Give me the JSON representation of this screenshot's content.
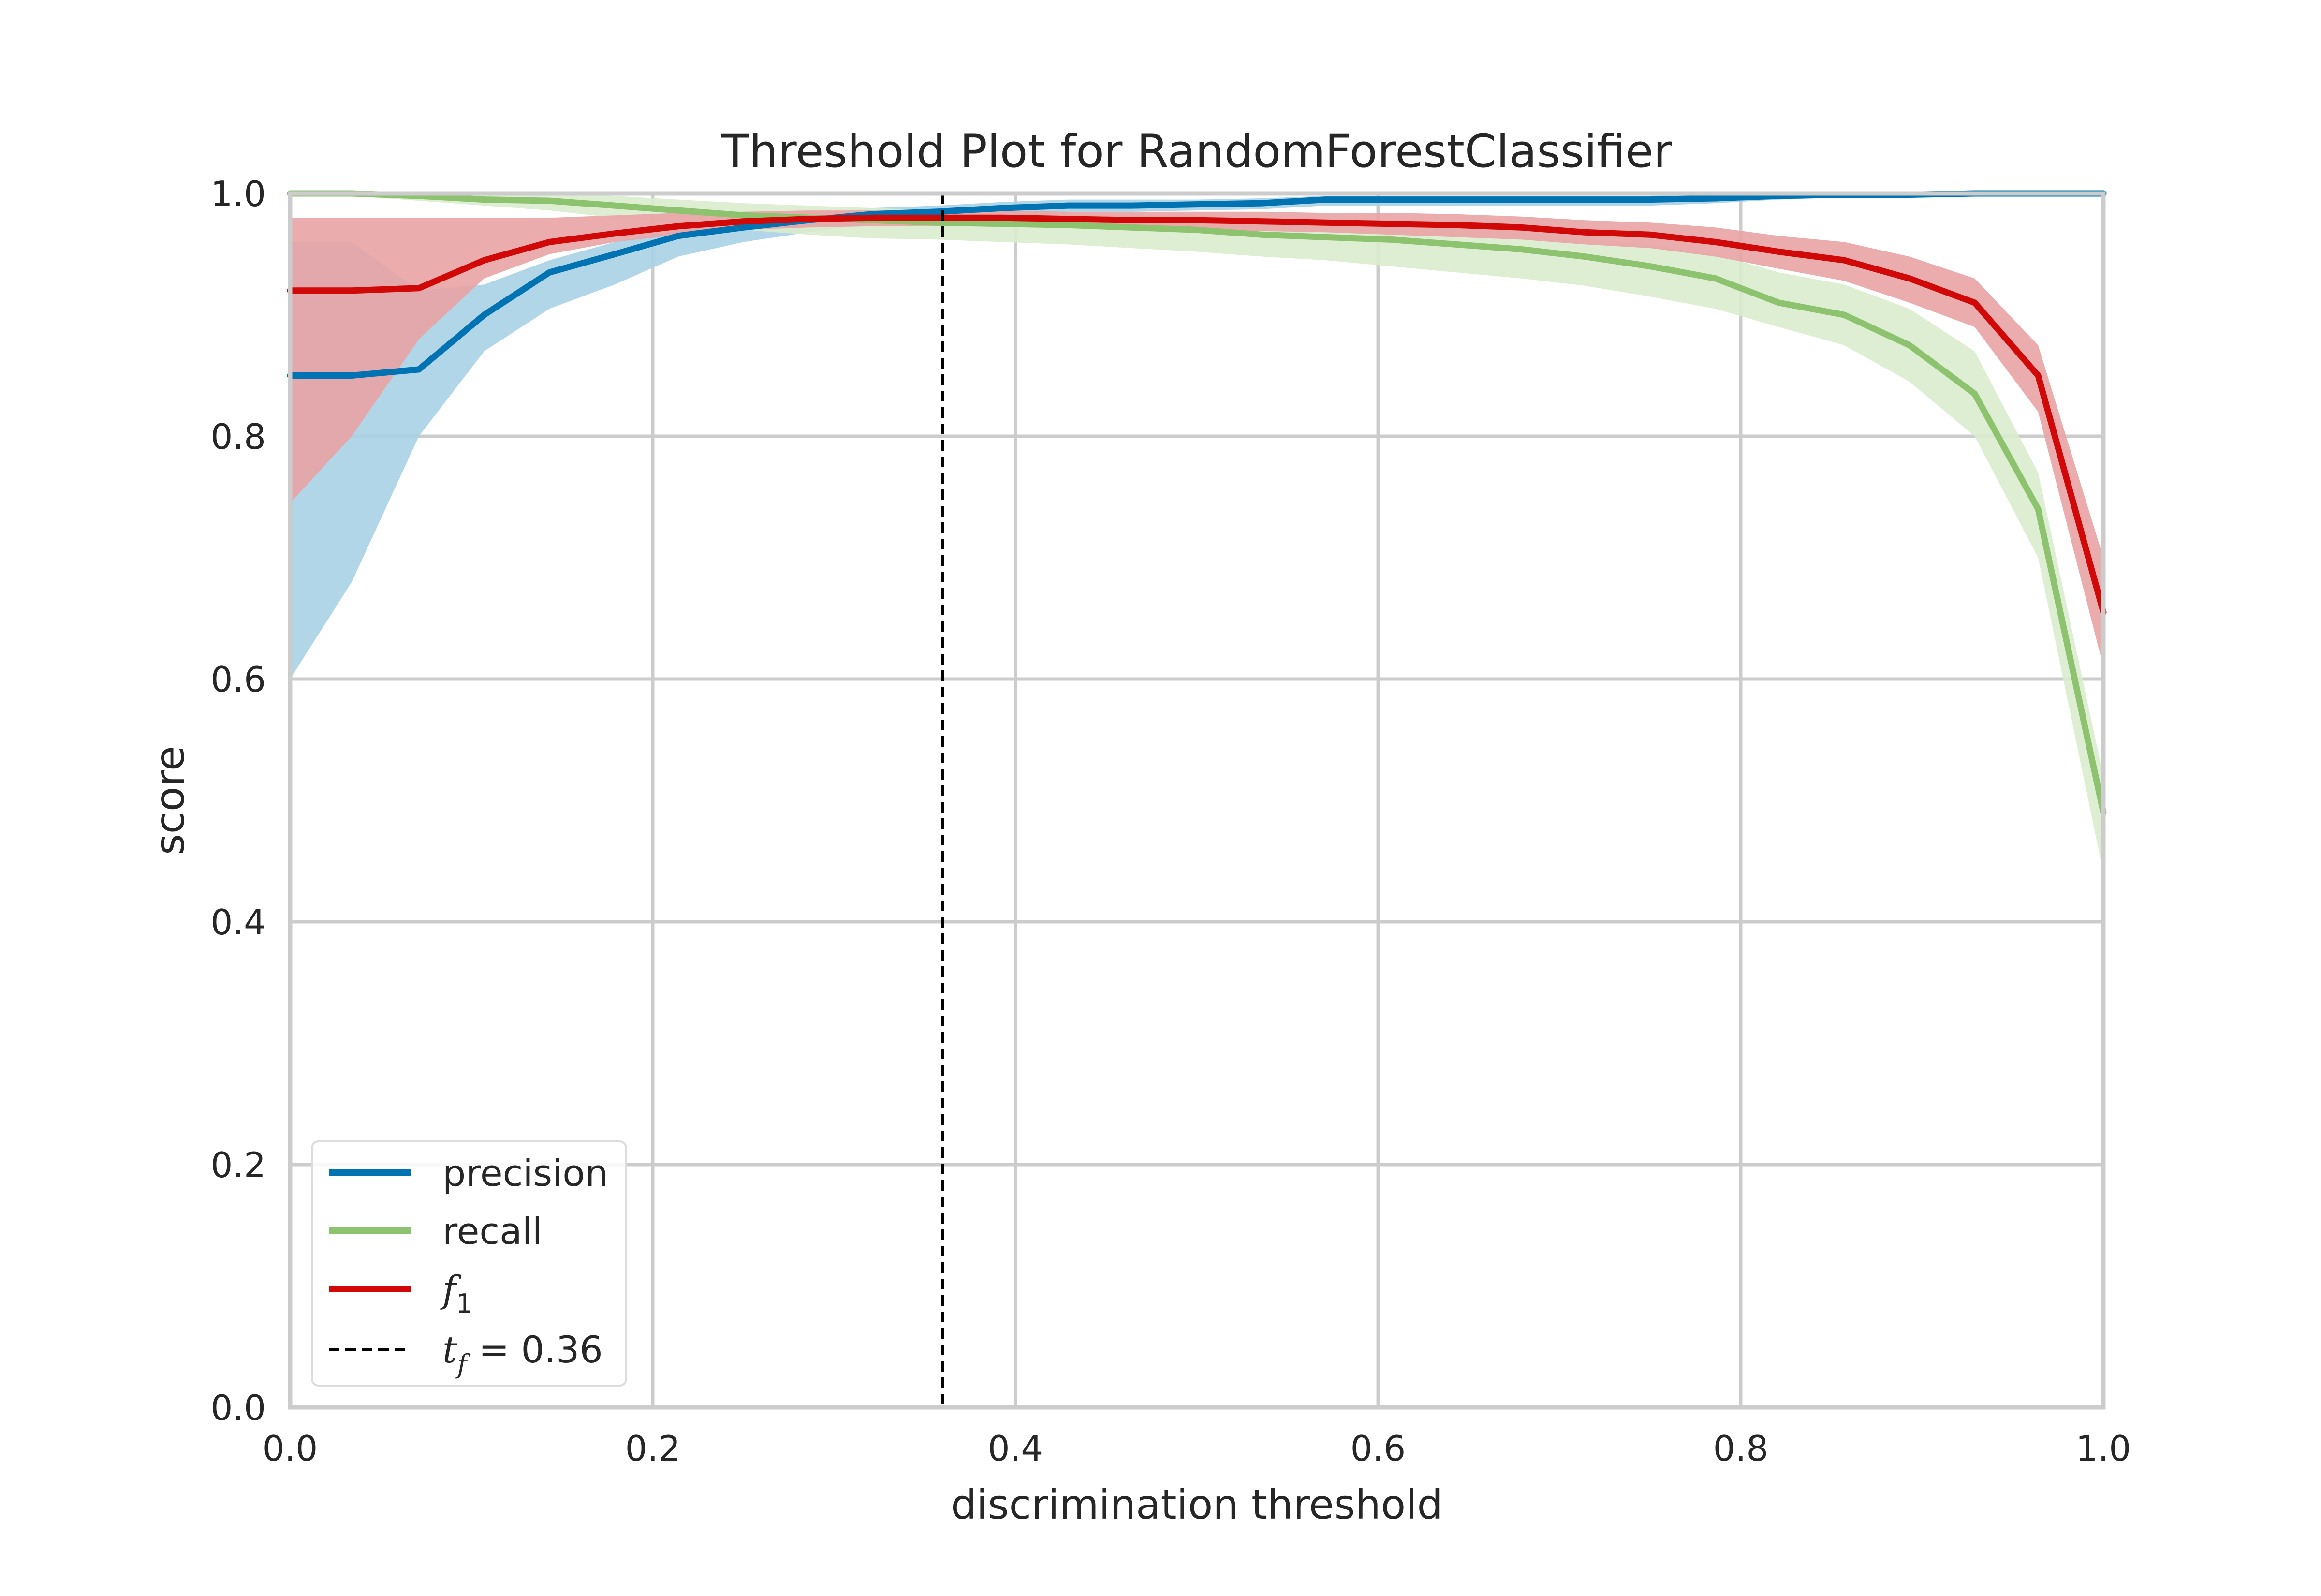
{
  "chart_data": {
    "type": "line",
    "title": "Threshold Plot for RandomForestClassifier",
    "xlabel": "discrimination threshold",
    "ylabel": "score",
    "xlim": [
      0.0,
      1.0
    ],
    "ylim": [
      0.0,
      1.0
    ],
    "grid": true,
    "legend_placement": "bottom-left",
    "xticks": [
      "0.0",
      "0.2",
      "0.4",
      "0.6",
      "0.8",
      "1.0"
    ],
    "yticks": [
      "0.0",
      "0.2",
      "0.4",
      "0.6",
      "0.8",
      "1.0"
    ],
    "x": [
      0.0,
      0.034,
      0.071,
      0.107,
      0.143,
      0.179,
      0.214,
      0.25,
      0.286,
      0.321,
      0.357,
      0.393,
      0.429,
      0.464,
      0.5,
      0.536,
      0.571,
      0.607,
      0.643,
      0.679,
      0.714,
      0.75,
      0.786,
      0.821,
      0.857,
      0.893,
      0.929,
      0.964,
      1.0
    ],
    "series": [
      {
        "name": "precision",
        "color": "#0173b2",
        "band_color": "#a8d2e4",
        "values": [
          0.85,
          0.85,
          0.855,
          0.9,
          0.935,
          0.95,
          0.965,
          0.972,
          0.978,
          0.983,
          0.985,
          0.988,
          0.99,
          0.99,
          0.991,
          0.992,
          0.995,
          0.995,
          0.995,
          0.995,
          0.995,
          0.995,
          0.996,
          0.998,
          0.999,
          0.999,
          1.0,
          1.0,
          1.0
        ],
        "lower": [
          0.6,
          0.68,
          0.8,
          0.87,
          0.905,
          0.925,
          0.948,
          0.96,
          0.968,
          0.975,
          0.978,
          0.982,
          0.985,
          0.985,
          0.986,
          0.987,
          0.99,
          0.99,
          0.99,
          0.99,
          0.99,
          0.99,
          0.992,
          0.995,
          0.997,
          0.997,
          0.998,
          0.998,
          0.998
        ],
        "upper": [
          0.96,
          0.96,
          0.92,
          0.925,
          0.945,
          0.96,
          0.97,
          0.978,
          0.984,
          0.988,
          0.99,
          0.993,
          0.995,
          0.995,
          0.995,
          0.996,
          0.998,
          0.998,
          0.998,
          0.998,
          0.998,
          0.998,
          0.999,
          1.0,
          1.0,
          1.0,
          1.0,
          1.0,
          1.0
        ]
      },
      {
        "name": "recall",
        "color": "#8dc26f",
        "band_color": "#d9eccd",
        "values": [
          1.0,
          1.0,
          0.998,
          0.995,
          0.994,
          0.99,
          0.986,
          0.982,
          0.98,
          0.978,
          0.976,
          0.975,
          0.974,
          0.972,
          0.97,
          0.966,
          0.964,
          0.962,
          0.958,
          0.954,
          0.948,
          0.94,
          0.93,
          0.91,
          0.9,
          0.875,
          0.835,
          0.74,
          0.49
        ],
        "lower": [
          1.0,
          0.998,
          0.994,
          0.99,
          0.986,
          0.98,
          0.975,
          0.97,
          0.966,
          0.963,
          0.962,
          0.96,
          0.958,
          0.955,
          0.952,
          0.948,
          0.945,
          0.94,
          0.935,
          0.93,
          0.924,
          0.915,
          0.905,
          0.89,
          0.875,
          0.845,
          0.8,
          0.7,
          0.44
        ],
        "upper": [
          1.0,
          1.0,
          1.0,
          1.0,
          1.0,
          0.998,
          0.995,
          0.992,
          0.99,
          0.988,
          0.986,
          0.985,
          0.984,
          0.983,
          0.982,
          0.978,
          0.976,
          0.975,
          0.972,
          0.968,
          0.963,
          0.958,
          0.95,
          0.935,
          0.925,
          0.905,
          0.87,
          0.77,
          0.52
        ]
      },
      {
        "name": "f₁",
        "color": "#d10808",
        "band_color": "#e9a3a5",
        "values": [
          0.92,
          0.92,
          0.922,
          0.945,
          0.96,
          0.967,
          0.973,
          0.977,
          0.979,
          0.98,
          0.98,
          0.98,
          0.979,
          0.978,
          0.978,
          0.977,
          0.976,
          0.975,
          0.974,
          0.972,
          0.968,
          0.966,
          0.96,
          0.952,
          0.945,
          0.93,
          0.91,
          0.85,
          0.655
        ],
        "lower": [
          0.745,
          0.8,
          0.88,
          0.93,
          0.95,
          0.96,
          0.966,
          0.97,
          0.972,
          0.973,
          0.973,
          0.973,
          0.972,
          0.971,
          0.97,
          0.969,
          0.968,
          0.966,
          0.964,
          0.962,
          0.958,
          0.955,
          0.948,
          0.938,
          0.928,
          0.91,
          0.89,
          0.82,
          0.61
        ],
        "upper": [
          0.98,
          0.98,
          0.98,
          0.98,
          0.98,
          0.982,
          0.984,
          0.985,
          0.986,
          0.986,
          0.986,
          0.986,
          0.985,
          0.985,
          0.985,
          0.985,
          0.984,
          0.984,
          0.983,
          0.981,
          0.978,
          0.976,
          0.972,
          0.965,
          0.96,
          0.948,
          0.93,
          0.875,
          0.7
        ]
      }
    ],
    "threshold": {
      "value": 0.36,
      "label": "t_f = 0.36"
    }
  },
  "legend": {
    "precision": "precision",
    "recall": "recall",
    "f1_main": "f",
    "f1_sub": "1",
    "tf_main": "t",
    "tf_sub": "f",
    "tf_value": " = 0.36"
  }
}
